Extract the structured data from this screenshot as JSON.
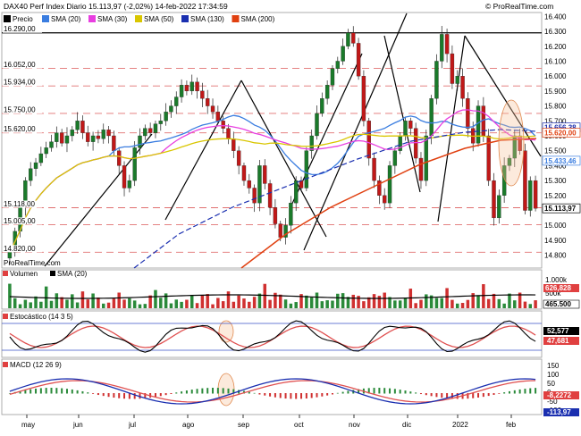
{
  "header": {
    "title": "DAX40 Perf Index Diario 15.113,97 (-2,02%) 14-feb-2022 17:34:59",
    "brand": "© ProRealTime.com"
  },
  "legend": [
    {
      "label": "Precio",
      "color": "#000000"
    },
    {
      "label": "SMA (20)",
      "color": "#3a7de0"
    },
    {
      "label": "SMA (30)",
      "color": "#e83ee0"
    },
    {
      "label": "SMA (50)",
      "color": "#d9c600"
    },
    {
      "label": "SMA (130)",
      "color": "#1a2fb0"
    },
    {
      "label": "SMA (200)",
      "color": "#e04010"
    }
  ],
  "watermark": "ProRealTime.com",
  "colors": {
    "up": "#1a7a2a",
    "down": "#c01818",
    "grid": "#e07070",
    "bg": "#ffffff"
  },
  "price_axis": {
    "ticks": [
      "16.400",
      "16.300",
      "16.200",
      "16.100",
      "16.000",
      "15.900",
      "15.800",
      "15.700",
      "15.600",
      "15.500",
      "15.400",
      "15.300",
      "15.200",
      "15.100",
      "15.000",
      "14.900",
      "14.800"
    ],
    "left_levels": [
      "16.290,00",
      "16.052,00",
      "15.934,00",
      "15.750,00",
      "15.620,00",
      "15.118,00",
      "15.005,00",
      "14.820,00"
    ],
    "right_labels": [
      {
        "text": "15.656,38",
        "color": "#1a2fb0",
        "price": 15656
      },
      {
        "text": "15.620,00",
        "color": "#e04010",
        "price": 15620
      },
      {
        "text": "15.433,46",
        "color": "#3a7de0",
        "price": 15433
      },
      {
        "text": "15.113,97",
        "color": "#000000",
        "price": 15114
      }
    ]
  },
  "volume_panel": {
    "title": "Volumen",
    "sma_label": "SMA (20)",
    "ticks": [
      "1.000k",
      "500k"
    ],
    "value_labels": [
      "626,828",
      "465.500"
    ]
  },
  "stoch_panel": {
    "title": "Estocástico (14 3 5)",
    "value_labels": [
      "52,577",
      "47,681"
    ]
  },
  "macd_panel": {
    "title": "MACD (12 26 9)",
    "ticks": [
      "150",
      "100",
      "50",
      "0",
      "-50",
      "-100"
    ],
    "value_labels": [
      "-8,2272",
      "-113,97"
    ]
  },
  "x_labels": [
    "may",
    "jun",
    "jul",
    "ago",
    "sep",
    "oct",
    "nov",
    "dic",
    "2022",
    "feb"
  ],
  "chart_data": {
    "type": "candlestick",
    "title": "DAX40 Perf Index Diario",
    "x_months": [
      "may",
      "jun",
      "jul",
      "ago",
      "sep",
      "oct",
      "nov",
      "dic",
      "2022",
      "feb"
    ],
    "y_range": [
      14720,
      16420
    ],
    "close_series": [
      14820,
      14960,
      15120,
      15300,
      15380,
      15420,
      15480,
      15520,
      15560,
      15620,
      15550,
      15600,
      15640,
      15700,
      15620,
      15560,
      15600,
      15580,
      15640,
      15600,
      15500,
      15400,
      15250,
      15300,
      15520,
      15600,
      15650,
      15620,
      15680,
      15700,
      15760,
      15800,
      15860,
      15940,
      15900,
      15960,
      15900,
      15850,
      15800,
      15760,
      15700,
      15650,
      15580,
      15500,
      15400,
      15300,
      15250,
      15150,
      15400,
      15280,
      15120,
      15010,
      14920,
      15000,
      15150,
      15300,
      15250,
      15500,
      15600,
      15750,
      15850,
      15940,
      16050,
      16100,
      16200,
      16290,
      16220,
      16000,
      15700,
      15450,
      15300,
      15200,
      15150,
      15400,
      15500,
      15600,
      15700,
      15650,
      15450,
      15300,
      15600,
      15850,
      16100,
      16280,
      16150,
      15950,
      16000,
      15850,
      15650,
      15550,
      15800,
      15600,
      15300,
      15050,
      15200,
      15400,
      15450,
      15600,
      15500,
      15100,
      15300,
      15114
    ],
    "levels": [
      16290,
      16052,
      15934,
      15750,
      15620,
      15118,
      15005,
      14820
    ],
    "sma_last": {
      "SMA (20)": 15433.46,
      "SMA (130)": 15656.38,
      "SMA (200)": 15620.0
    }
  }
}
